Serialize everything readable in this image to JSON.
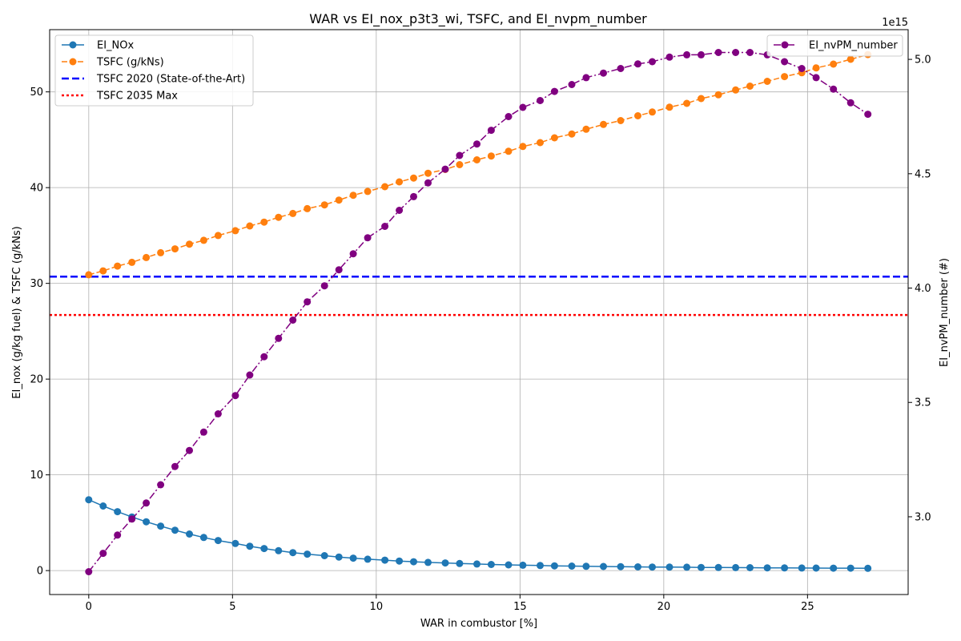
{
  "chart_data": {
    "type": "line",
    "title": "WAR vs EI_nox_p3t3_wi, TSFC, and EI_nvpm_number",
    "xlabel": "WAR in combustor [%]",
    "ylabel_left": "EI_nox (g/kg fuel) & TSFC (g/kNs)",
    "ylabel_right": "EI_nvPM_number (#)",
    "right_axis_multiplier": "1e15",
    "xlim": [
      -1.36,
      28.5
    ],
    "ylim_left": [
      -2.5,
      56.5
    ],
    "ylim_right": [
      2660000000000000.0,
      5130000000000000.0
    ],
    "x_ticks": [
      0,
      5,
      10,
      15,
      20,
      25
    ],
    "x_tick_labels": [
      "0",
      "5",
      "10",
      "15",
      "20",
      "25"
    ],
    "y_left_ticks": [
      0,
      10,
      20,
      30,
      40,
      50
    ],
    "y_left_tick_labels": [
      "0",
      "10",
      "20",
      "30",
      "40",
      "50"
    ],
    "y_right_ticks": [
      3000000000000000.0,
      3500000000000000.0,
      4000000000000000.0,
      4500000000000000.0,
      5000000000000000.0
    ],
    "y_right_tick_labels": [
      "3.0",
      "3.5",
      "4.0",
      "4.5",
      "5.0"
    ],
    "grid": true,
    "x": [
      0,
      0.5,
      1.0,
      1.5,
      2.0,
      2.5,
      3.0,
      3.5,
      4.0,
      4.5,
      5.1,
      5.6,
      6.1,
      6.6,
      7.1,
      7.6,
      8.2,
      8.7,
      9.2,
      9.7,
      10.3,
      10.8,
      11.3,
      11.8,
      12.4,
      12.9,
      13.5,
      14.0,
      14.6,
      15.1,
      15.7,
      16.2,
      16.8,
      17.3,
      17.9,
      18.5,
      19.1,
      19.6,
      20.2,
      20.8,
      21.3,
      21.9,
      22.5,
      23.0,
      23.6,
      24.2,
      24.8,
      25.3,
      25.9,
      26.5,
      27.1
    ],
    "series": [
      {
        "name": "EI_NOx",
        "axis": "left",
        "color": "#1f77b4",
        "linestyle": "solid",
        "marker": true,
        "values": [
          7.4,
          6.75,
          6.15,
          5.6,
          5.1,
          4.65,
          4.22,
          3.82,
          3.46,
          3.14,
          2.83,
          2.55,
          2.3,
          2.08,
          1.88,
          1.72,
          1.56,
          1.42,
          1.3,
          1.19,
          1.09,
          1.0,
          0.92,
          0.86,
          0.8,
          0.74,
          0.69,
          0.64,
          0.6,
          0.56,
          0.53,
          0.5,
          0.47,
          0.45,
          0.43,
          0.41,
          0.39,
          0.37,
          0.36,
          0.35,
          0.33,
          0.32,
          0.31,
          0.3,
          0.29,
          0.28,
          0.27,
          0.26,
          0.25,
          0.25,
          0.24
        ]
      },
      {
        "name": "TSFC (g/kNs)",
        "axis": "left",
        "color": "#ff7f0e",
        "linestyle": "dashed",
        "marker": true,
        "values": [
          30.9,
          31.3,
          31.8,
          32.2,
          32.7,
          33.2,
          33.6,
          34.1,
          34.5,
          35.0,
          35.5,
          36.0,
          36.4,
          36.9,
          37.3,
          37.8,
          38.2,
          38.7,
          39.2,
          39.6,
          40.1,
          40.6,
          41.0,
          41.5,
          41.9,
          42.4,
          42.9,
          43.3,
          43.8,
          44.3,
          44.7,
          45.2,
          45.6,
          46.1,
          46.6,
          47.0,
          47.5,
          47.9,
          48.4,
          48.8,
          49.3,
          49.7,
          50.2,
          50.6,
          51.1,
          51.6,
          52.0,
          52.5,
          52.9,
          53.4,
          53.9
        ]
      },
      {
        "name": "EI_nvPM_number",
        "axis": "right",
        "color": "#800080",
        "linestyle": "dashdot",
        "marker": true,
        "values": [
          2760000000000000.0,
          2840000000000000.0,
          2920000000000000.0,
          2990000000000000.0,
          3060000000000000.0,
          3140000000000000.0,
          3220000000000000.0,
          3290000000000000.0,
          3370000000000000.0,
          3450000000000000.0,
          3530000000000000.0,
          3620000000000000.0,
          3700000000000000.0,
          3780000000000000.0,
          3860000000000000.0,
          3940000000000000.0,
          4010000000000000.0,
          4080000000000000.0,
          4150000000000000.0,
          4220000000000000.0,
          4270000000000000.0,
          4340000000000000.0,
          4400000000000000.0,
          4460000000000000.0,
          4520000000000000.0,
          4580000000000000.0,
          4630000000000000.0,
          4690000000000000.0,
          4750000000000000.0,
          4790000000000000.0,
          4820000000000000.0,
          4860000000000000.0,
          4890000000000000.0,
          4920000000000000.0,
          4940000000000000.0,
          4960000000000000.0,
          4980000000000000.0,
          4990000000000000.0,
          5010000000000000.0,
          5020000000000000.0,
          5020000000000000.0,
          5030000000000000.0,
          5030000000000000.0,
          5030000000000000.0,
          5020000000000000.0,
          4990000000000000.0,
          4960000000000000.0,
          4920000000000000.0,
          4870000000000000.0,
          4810000000000000.0,
          4760000000000000.0
        ]
      }
    ],
    "hlines": [
      {
        "name": "TSFC 2020 (State-of-the-Art)",
        "y": 30.7,
        "color": "#0000ff",
        "linestyle": "dashed"
      },
      {
        "name": "TSFC 2035 Max",
        "y": 26.7,
        "color": "#ff0000",
        "linestyle": "dotted"
      }
    ],
    "legend_left_position": "upper-left",
    "legend_right_position": "upper-right"
  }
}
